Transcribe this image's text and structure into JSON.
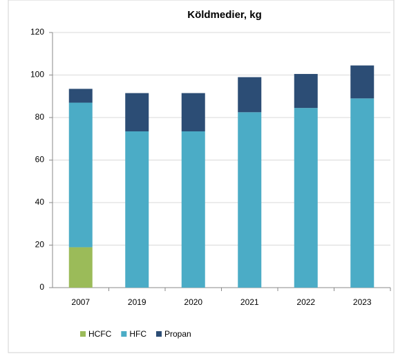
{
  "chart_data": {
    "type": "stacked_bar",
    "title": "Köldmedier, kg",
    "categories": [
      "2007",
      "2019",
      "2020",
      "2021",
      "2022",
      "2023"
    ],
    "series": [
      {
        "name": "HCFC",
        "color": "#9bbb59",
        "values": [
          19,
          0,
          0,
          0,
          0,
          0
        ]
      },
      {
        "name": "HFC",
        "color": "#4bacc6",
        "values": [
          68,
          73.5,
          73.5,
          82.5,
          84.5,
          89
        ]
      },
      {
        "name": "Propan",
        "color": "#2c4d75",
        "values": [
          6.5,
          18,
          18,
          16.5,
          16,
          15.5
        ]
      }
    ],
    "ylim": [
      0,
      120
    ],
    "yticks": [
      0,
      20,
      40,
      60,
      80,
      100,
      120
    ],
    "grid": true,
    "legend": "bottom"
  }
}
